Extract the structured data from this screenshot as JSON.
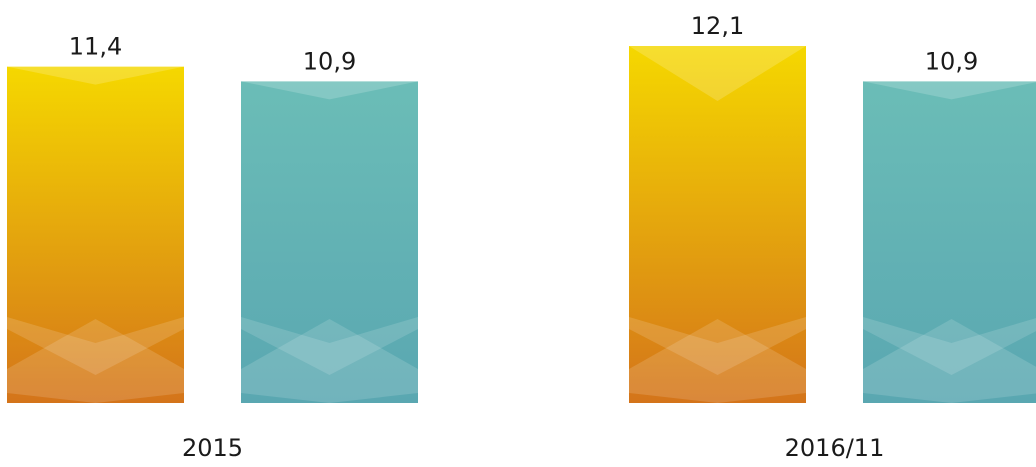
{
  "chart_data": {
    "type": "bar",
    "categories": [
      "2015",
      "2016/11"
    ],
    "series": [
      {
        "values": [
          11.4,
          12.1
        ],
        "color_top": "#f5d800",
        "color_bottom": "#d4741a"
      },
      {
        "values": [
          10.9,
          10.9
        ],
        "color_top": "#6bbdb7",
        "color_bottom": "#5aa7b1"
      }
    ],
    "value_labels": [
      [
        "11,4",
        "12,1"
      ],
      [
        "10,9",
        "10,9"
      ]
    ],
    "title": "",
    "xlabel": "",
    "ylabel": "",
    "ylim": [
      0,
      12.1
    ],
    "grid": false,
    "legend": "none"
  }
}
